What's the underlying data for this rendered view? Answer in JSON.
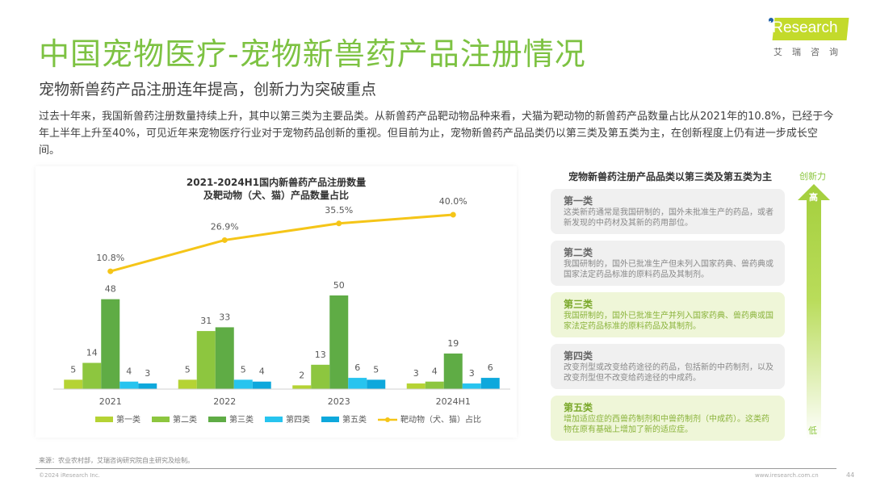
{
  "header": {
    "title": "中国宠物医疗-宠物新兽药产品注册情况",
    "subtitle": "宠物新兽药产品注册连年提高，创新力为突破重点"
  },
  "logo": {
    "brand": "iResearch",
    "cn": "艾瑞咨询"
  },
  "intro": "过去十年来，我国新兽药注册数量持续上升，其中以第三类为主要品类。从新兽药产品靶动物品种来看，犬猫为靶动物的新兽药产品数量占比从2021年的10.8%，已经于今年上半年上升至40%，可见近年来宠物医疗行业对于宠物药品创新的重视。但目前为止，宠物新兽药产品品类仍以第三类及第五类为主，在创新程度上仍有进一步成长空间。",
  "chart_data": {
    "type": "bar",
    "title_line1": "2021-2024H1国内新兽药产品注册数量",
    "title_line2": "及靶动物（犬、猫）产品数量占比",
    "categories": [
      "2021",
      "2022",
      "2023",
      "2024H1"
    ],
    "series": [
      {
        "name": "第一类",
        "color": "#b5d334",
        "values": [
          5,
          5,
          2,
          3
        ]
      },
      {
        "name": "第二类",
        "color": "#8dc63f",
        "values": [
          14,
          31,
          13,
          4
        ]
      },
      {
        "name": "第三类",
        "color": "#5fac45",
        "values": [
          48,
          33,
          50,
          19
        ]
      },
      {
        "name": "第四类",
        "color": "#27c4ef",
        "values": [
          4,
          5,
          6,
          3
        ]
      },
      {
        "name": "第五类",
        "color": "#0ea8dc",
        "values": [
          3,
          4,
          5,
          6
        ]
      }
    ],
    "line_series": {
      "name": "靶动物（犬、猫）占比",
      "color": "#f5c518",
      "values": [
        10.8,
        26.9,
        35.5,
        40.0
      ],
      "labels": [
        "10.8%",
        "26.9%",
        "35.5%",
        "40.0%"
      ]
    },
    "bar_ylim": [
      0,
      60
    ],
    "line_ylim": [
      0,
      45
    ],
    "legend": "bottom",
    "grid": false
  },
  "right_panel": {
    "title": "宠物新兽药注册产品品类以第三类及第五类为主",
    "categories": [
      {
        "name": "第一类",
        "desc": "这类新药通常是我国研制的，国外未批准生产的药品，或者新发现的中药材及其新的药用部位。",
        "highlight": false
      },
      {
        "name": "第二类",
        "desc": "我国研制的，国外已批准生产但未列入国家药典、兽药典或国家法定药品标准的原料药品及其制剂。",
        "highlight": false
      },
      {
        "name": "第三类",
        "desc": "我国研制的，国外已批准生产并列入国家药典、兽药典或国家法定药品标准的原料药品及其制剂。",
        "highlight": true
      },
      {
        "name": "第四类",
        "desc": "改变剂型或改变给药途径的药品，包括新的中药制剂，以及改变剂型但不改变给药途径的中成药。",
        "highlight": false
      },
      {
        "name": "第五类",
        "desc": "增加适应症的西兽药制剂和中兽药制剂（中成药）。这类药物在原有基础上增加了新的适应症。",
        "highlight": true
      }
    ],
    "arrow": {
      "label": "创新力",
      "high": "高",
      "low": "低"
    }
  },
  "footer": {
    "source": "来源：农业农村部，艾瑞咨询研究院自主研究及绘制。",
    "copyright": "©2024 iResearch Inc.",
    "website": "www.iresearch.com.cn",
    "page": "44"
  }
}
